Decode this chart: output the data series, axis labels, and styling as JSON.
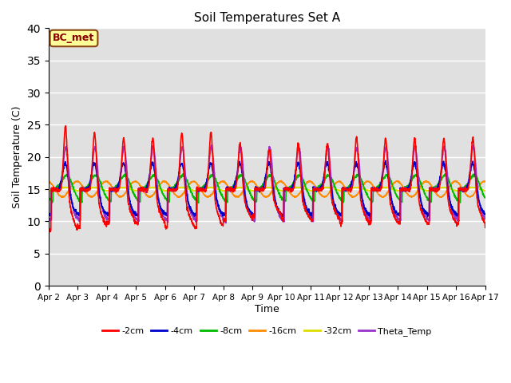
{
  "title": "Soil Temperatures Set A",
  "xlabel": "Time",
  "ylabel": "Soil Temperature (C)",
  "xlim": [
    0,
    15
  ],
  "ylim": [
    0,
    40
  ],
  "yticks": [
    0,
    5,
    10,
    15,
    20,
    25,
    30,
    35,
    40
  ],
  "xtick_labels": [
    "Apr 2",
    "Apr 3",
    "Apr 4",
    "Apr 5",
    "Apr 6",
    "Apr 7",
    "Apr 8",
    "Apr 9",
    "Apr 10",
    "Apr 11",
    "Apr 12",
    "Apr 13",
    "Apr 14",
    "Apr 15",
    "Apr 16",
    "Apr 17"
  ],
  "annotation_text": "BC_met",
  "annotation_color": "#8B0000",
  "annotation_bg": "#FFFF99",
  "bg_color": "#E0E0E0",
  "colors": {
    "-2cm": "#FF0000",
    "-4cm": "#0000CC",
    "-8cm": "#00BB00",
    "-16cm": "#FF8C00",
    "-32cm": "#DDDD00",
    "Theta_Temp": "#9933CC"
  },
  "line_widths": {
    "-2cm": 1.2,
    "-4cm": 1.2,
    "-8cm": 1.2,
    "-16cm": 1.2,
    "-32cm": 1.2,
    "Theta_Temp": 1.2
  }
}
